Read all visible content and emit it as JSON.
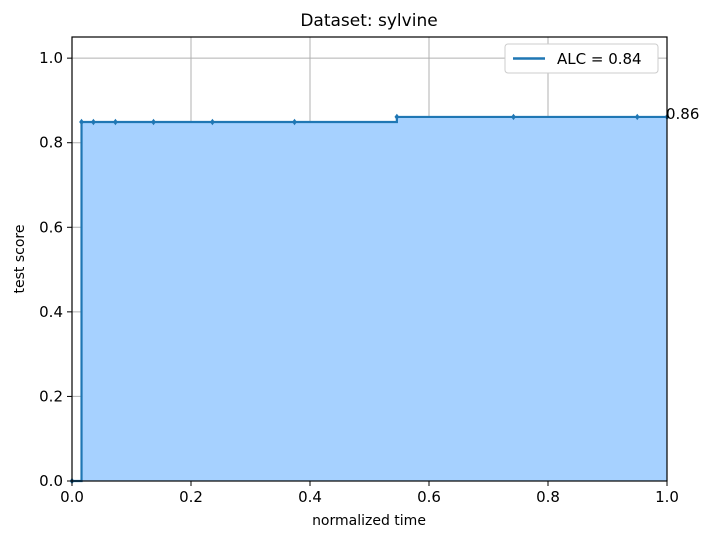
{
  "chart_data": {
    "type": "area",
    "title": "Dataset: sylvine",
    "xlabel": "normalized time",
    "ylabel": "test score",
    "xlim": [
      0.0,
      1.0
    ],
    "ylim": [
      0.0,
      1.05
    ],
    "xticks": [
      "0.0",
      "0.2",
      "0.4",
      "0.6",
      "0.8",
      "1.0"
    ],
    "yticks": [
      "0.0",
      "0.2",
      "0.4",
      "0.6",
      "0.8",
      "1.0"
    ],
    "grid": true,
    "legend_position": "top-right",
    "series": [
      {
        "name": "ALC = 0.84",
        "step": "post",
        "x": [
          0.0,
          0.016,
          0.036,
          0.073,
          0.137,
          0.236,
          0.374,
          0.546,
          0.742,
          0.95,
          1.0
        ],
        "y": [
          0.0,
          0.849,
          0.849,
          0.849,
          0.849,
          0.849,
          0.849,
          0.861,
          0.861,
          0.861,
          0.861
        ]
      }
    ],
    "annotations": [
      {
        "text": "0.86",
        "x": 1.0,
        "y": 0.861
      }
    ],
    "colors": {
      "line": "#1f77b4",
      "fill": "#a6d1ff",
      "grid": "#b0b0b0"
    }
  }
}
